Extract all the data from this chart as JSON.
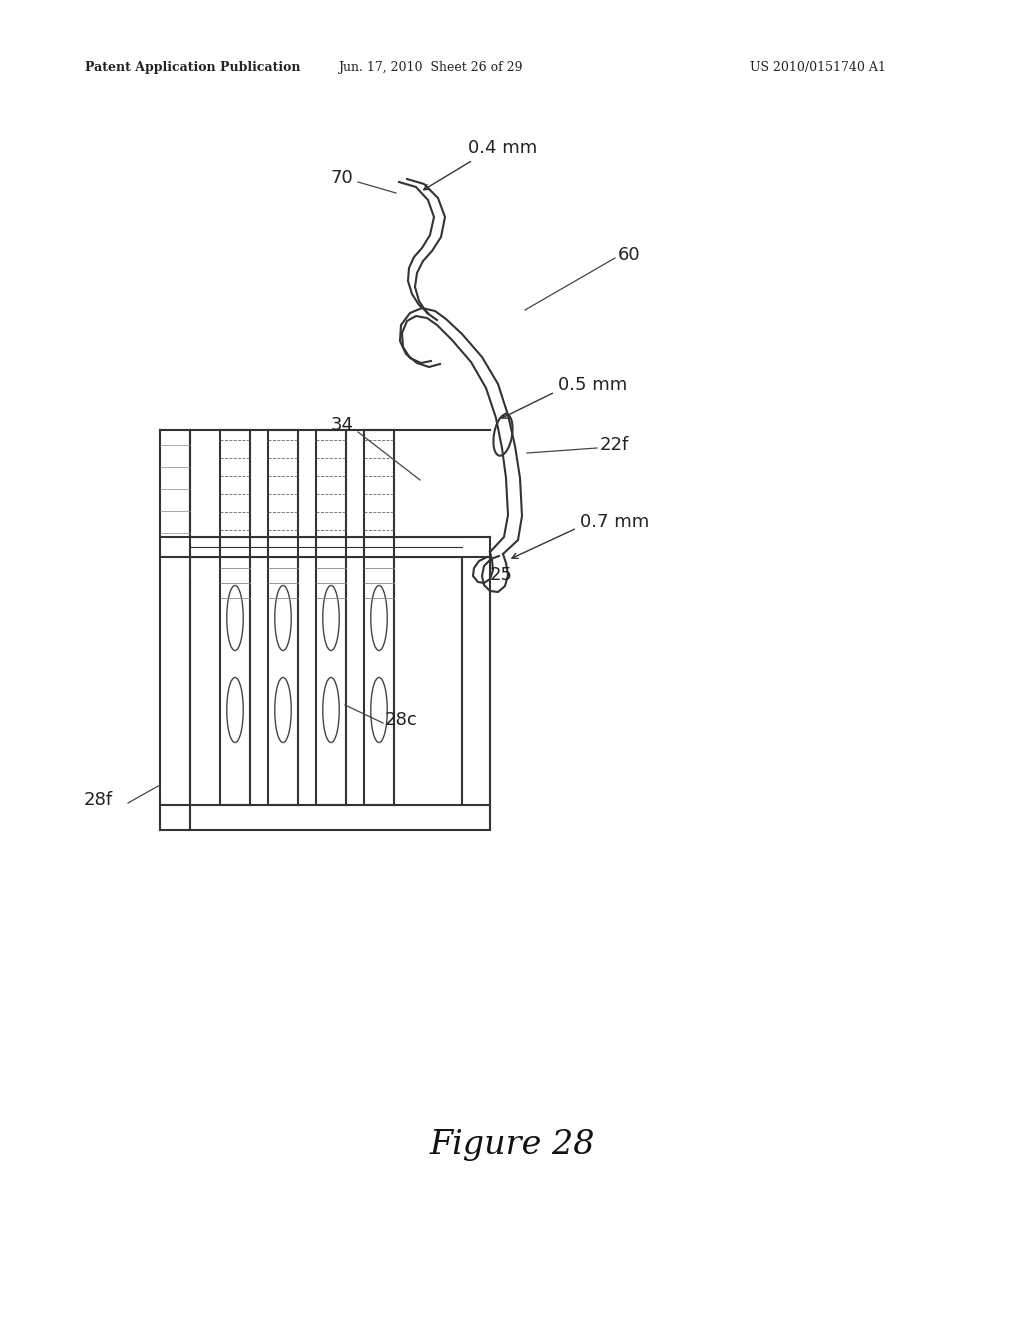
{
  "bg_color": "#ffffff",
  "header_left": "Patent Application Publication",
  "header_mid": "Jun. 17, 2010  Sheet 26 of 29",
  "header_right": "US 2010/0151740 A1",
  "figure_caption": "Figure 28",
  "label_color": "#222222",
  "line_color": "#333333",
  "lw_main": 1.5,
  "lw_thin": 1.0,
  "label_fs": 13
}
